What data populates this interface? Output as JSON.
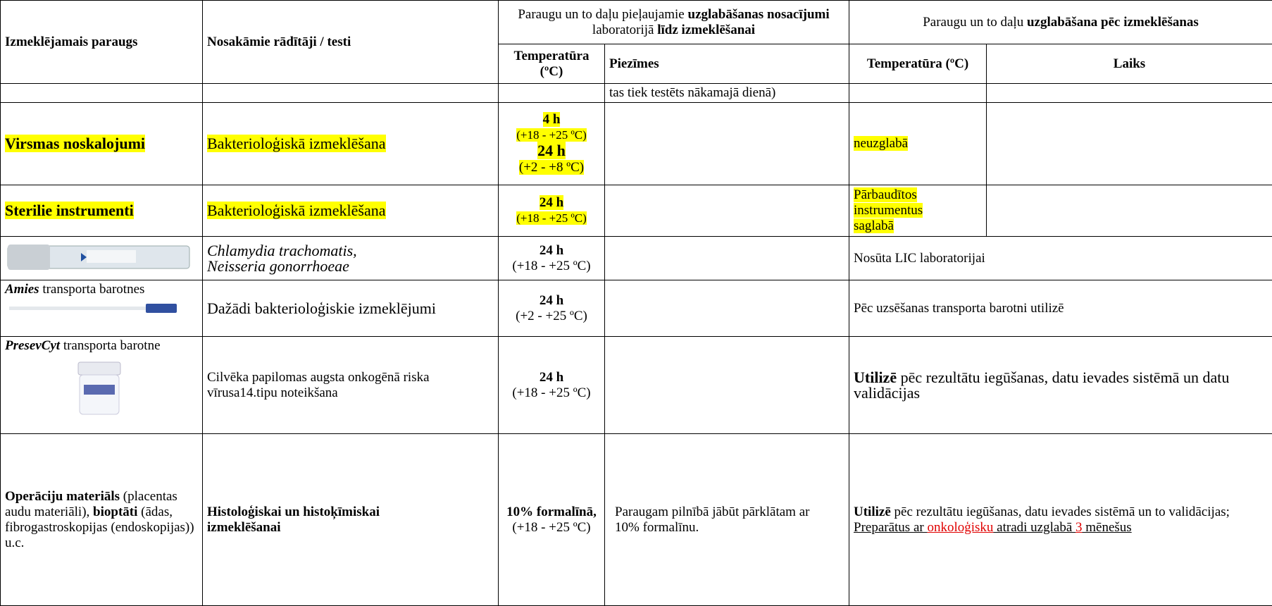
{
  "header": {
    "sample": "Izmeklējamais paraugs",
    "tests": "Nosakāmie rādītāji / testi",
    "storage_before": [
      "Paraugu un to daļu pieļaujamie ",
      "uzglabāšanas nosacījumi",
      " laboratorijā ",
      "līdz izmeklēšanai"
    ],
    "storage_after": [
      "Paraugu un to daļu ",
      "uzglabāšana pēc izmeklēšanas"
    ],
    "temperature": "Temperatūra (ºC)",
    "notes": "Piezīmes",
    "temperature_after": "Temperatūra (ºC)",
    "time": "Laiks"
  },
  "rows": [
    {
      "notes": "tas tiek testēts nākamajā dienā)"
    },
    {
      "sample": "Virsmas noskalojumi",
      "test": "Bakterioloģiskā izmeklēšana",
      "temperature": [
        "4 h",
        "(+18 - +25 ºC)",
        "24 h",
        "(+2 - +8 ºC)"
      ],
      "after": "neuzglabā"
    },
    {
      "sample": "Sterilie instrumenti",
      "test": "Bakterioloģiskā izmeklēšana",
      "temperature": [
        "24 h",
        "(+18 - +25 ºC)"
      ],
      "after": "Pārbaudītos instrumentus saglabā"
    },
    {
      "test": [
        "Chlamydia trachomatis,",
        "Neisseria gonorrhoeae"
      ],
      "temperature": [
        "24 h",
        "(+18 - +25 ºC)"
      ],
      "after": "Nosūta LIC laboratorijai"
    },
    {
      "sample": [
        "Amies",
        " transporta barotnes"
      ],
      "test": "Dažādi bakterioloģiskie izmeklējumi",
      "temperature": [
        "24 h",
        "(+2 - +25 ºC)"
      ],
      "after": "Pēc uzsēšanas transporta barotni utilizē"
    },
    {
      "sample": [
        "PresevCyt",
        " transporta barotne"
      ],
      "test": "Cilvēka papilomas augsta onkogēnā riska vīrusa14.tipu noteikšana",
      "temperature": [
        "24 h",
        "(+18 - +25 ºC)"
      ],
      "after": [
        "Utilizē",
        " pēc rezultātu iegūšanas, datu ievades sistēmā un datu validācijas"
      ]
    },
    {
      "sample": [
        "Operāciju materiāls",
        " (placentas audu materiāli), ",
        "bioptāti",
        " (ādas, fibrogastroskopijas (endoskopijas)) u.c."
      ],
      "test": "Histoloģiskai un histoķīmiskai izmeklēšanai",
      "temperature": [
        "10% formalīnā,",
        "(+18 - +25 ºC)"
      ],
      "notes": "Paraugam pilnībā jābūt pārklātam ar 10% formalīnu.",
      "after": [
        "Utilizē",
        " pēc rezultātu iegūšanas, datu ievades sistēmā un to validācijas; ",
        "Preparātus ar ",
        "onkoloģisku",
        " atradi uzglabā ",
        "3",
        " mēnešus"
      ]
    }
  ]
}
